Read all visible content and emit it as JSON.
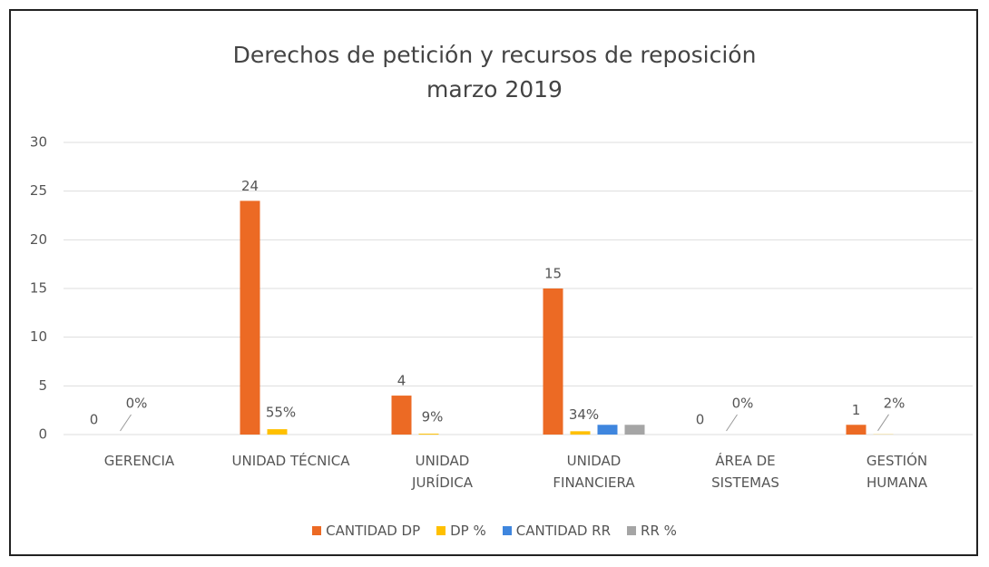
{
  "chart_data": {
    "type": "bar",
    "title": "Derechos de petición y recursos de reposición marzo 2019",
    "categories": [
      "GERENCIA",
      "UNIDAD TÉCNICA",
      "UNIDAD\nJURÍDICA",
      "UNIDAD\nFINANCIERA",
      "ÁREA DE\nSISTEMAS",
      "GESTIÓN\nHUMANA"
    ],
    "series": [
      {
        "name": "CANTIDAD DP",
        "color": "#ec6a24",
        "values": [
          0,
          24,
          4,
          15,
          0,
          1
        ]
      },
      {
        "name": "DP %",
        "color": "#ffc000",
        "values": [
          0,
          0.55,
          0.09,
          0.34,
          0,
          0.02
        ],
        "value_labels": [
          "0%",
          "55%",
          "9%",
          "34%",
          "0%",
          "2%"
        ]
      },
      {
        "name": "CANTIDAD RR",
        "color": "#3f86de",
        "values": [
          0,
          0,
          0,
          1,
          0,
          0
        ]
      },
      {
        "name": "RR %",
        "color": "#a5a5a5",
        "values": [
          0,
          0,
          0,
          1,
          0,
          0
        ]
      }
    ],
    "ylim": [
      0,
      30
    ],
    "yticks": [
      0,
      5,
      10,
      15,
      20,
      25,
      30
    ],
    "grid": true,
    "legend": "bottom"
  }
}
